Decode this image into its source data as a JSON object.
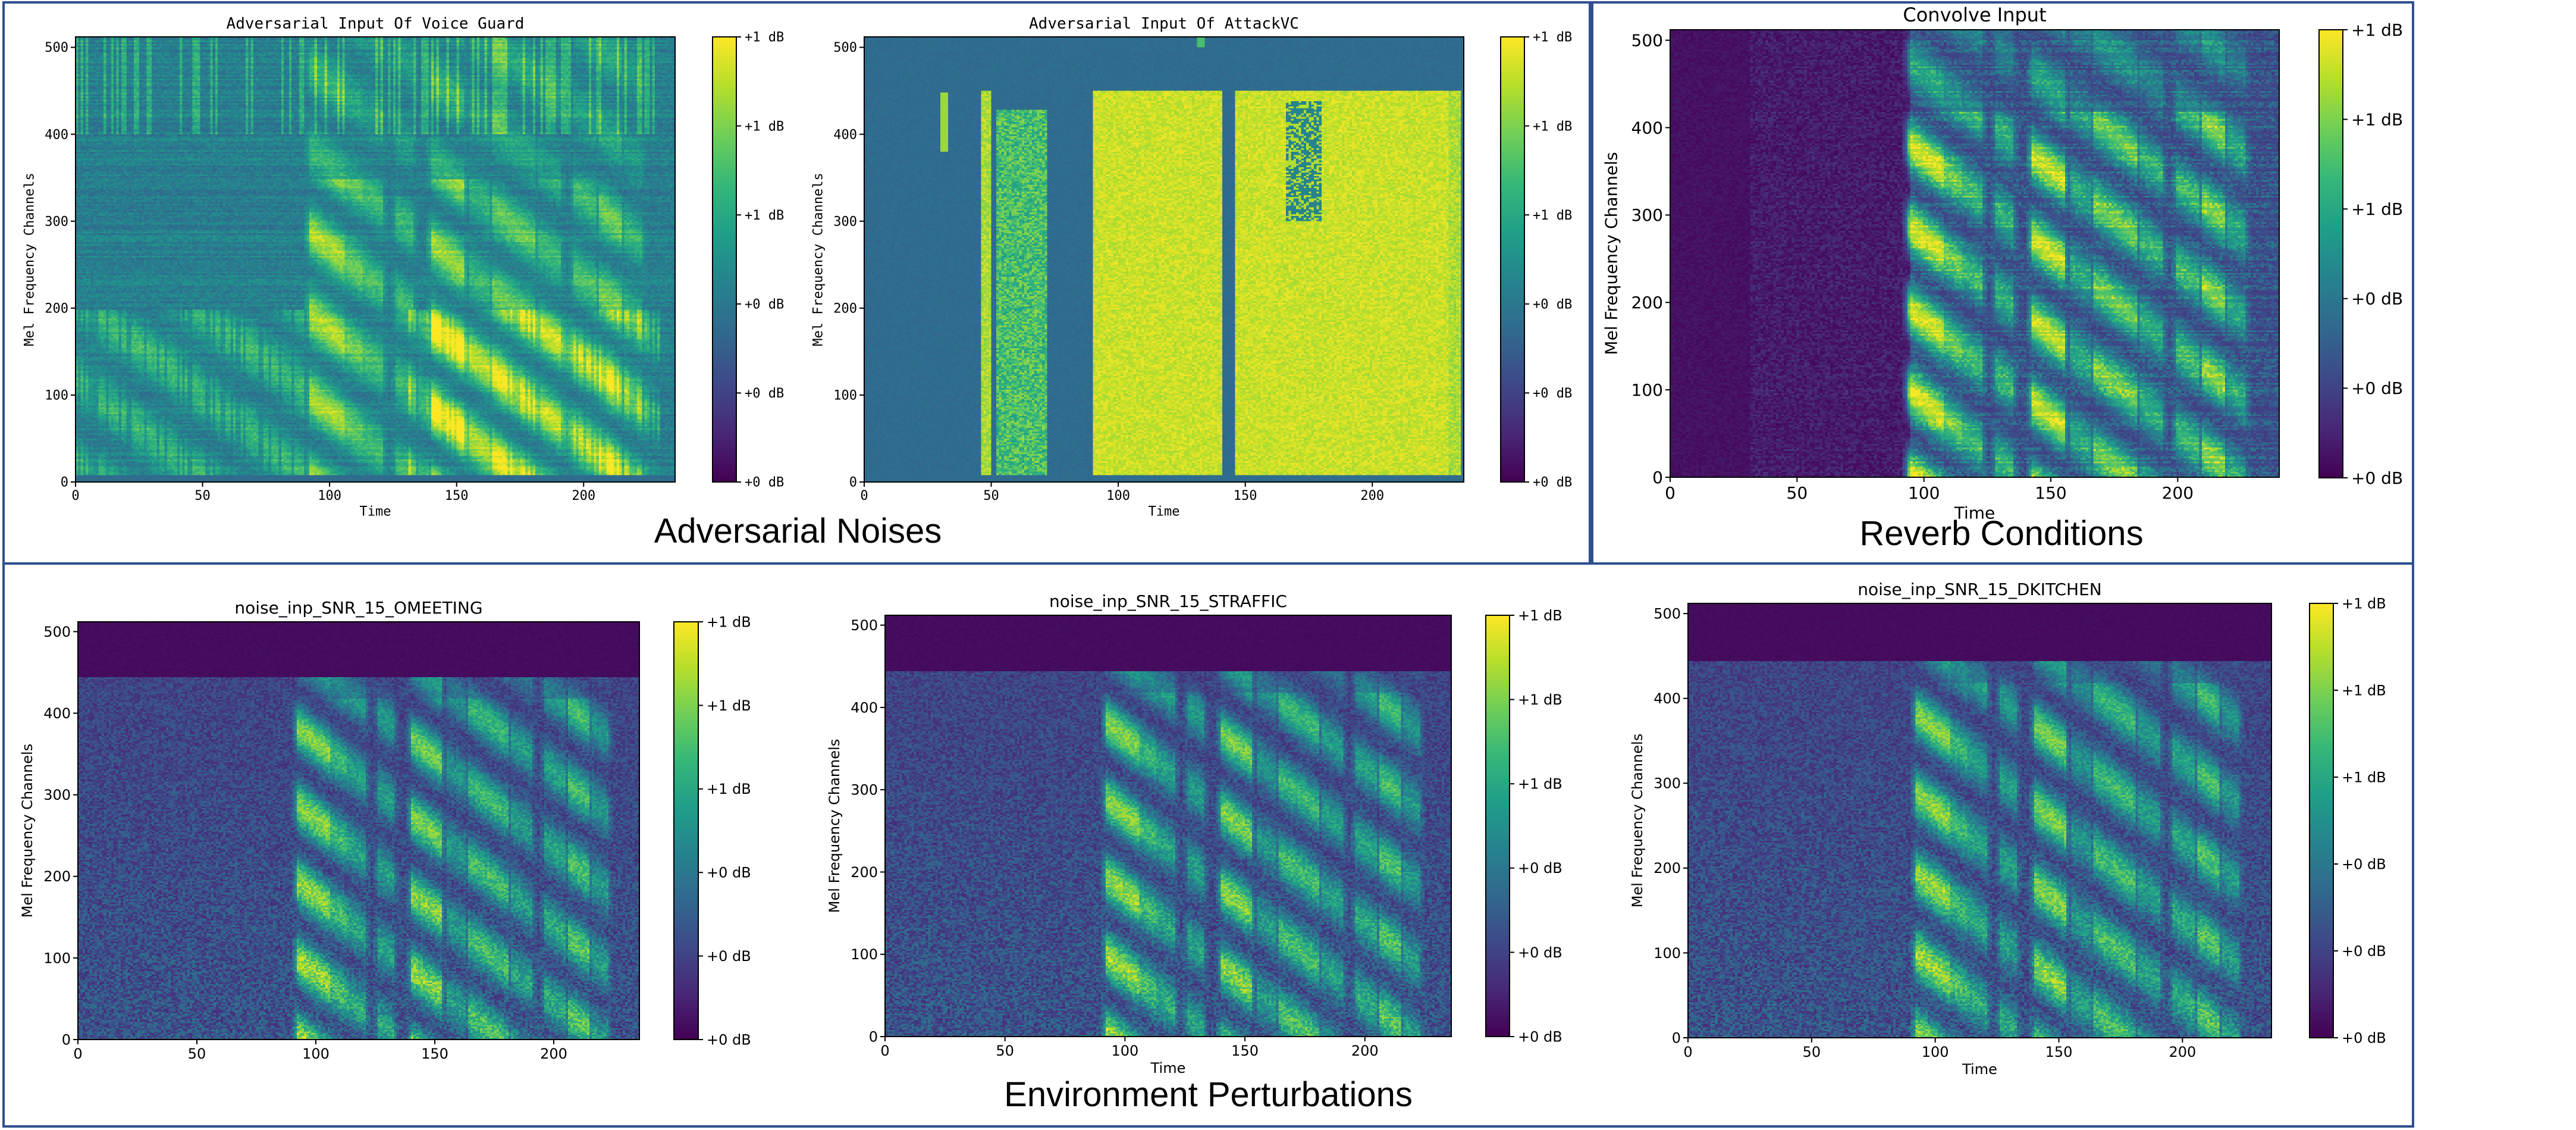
{
  "groups": {
    "adversarial": "Adversarial Noises",
    "reverb": "Reverb Conditions",
    "environment": "Environment Perturbations"
  },
  "colormap": [
    "#440154",
    "#482878",
    "#3e4989",
    "#31688e",
    "#26828e",
    "#1f9e89",
    "#35b779",
    "#6ece58",
    "#b5de2b",
    "#fde725"
  ],
  "chart_data": [
    {
      "id": "voice-guard",
      "type": "heatmap",
      "title": "Adversarial Input Of Voice Guard",
      "xlabel": "Time",
      "ylabel": "Mel Frequency Channels",
      "xlim": [
        0,
        236
      ],
      "ylim": [
        0,
        512
      ],
      "xticks": [
        0,
        50,
        100,
        150,
        200
      ],
      "yticks": [
        0,
        100,
        200,
        300,
        400,
        500
      ],
      "colorbar_ticks": [
        "+0 dB",
        "+0 dB",
        "+0 dB",
        "+1 dB",
        "+1 dB",
        "+1 dB"
      ],
      "profile": "voiceguard"
    },
    {
      "id": "attackvc",
      "type": "heatmap",
      "title": "Adversarial Input Of AttackVC",
      "xlabel": "Time",
      "ylabel": "Mel Frequency Channels",
      "xlim": [
        0,
        236
      ],
      "ylim": [
        0,
        512
      ],
      "xticks": [
        0,
        50,
        100,
        150,
        200
      ],
      "yticks": [
        0,
        100,
        200,
        300,
        400,
        500
      ],
      "colorbar_ticks": [
        "+0 dB",
        "+0 dB",
        "+0 dB",
        "+1 dB",
        "+1 dB",
        "+1 dB"
      ],
      "profile": "attackvc"
    },
    {
      "id": "convolve",
      "type": "heatmap",
      "title": "Convolve Input",
      "xlabel": "Time",
      "ylabel": "Mel Frequency Channels",
      "xlim": [
        0,
        240
      ],
      "ylim": [
        0,
        512
      ],
      "xticks": [
        0,
        50,
        100,
        150,
        200
      ],
      "yticks": [
        0,
        100,
        200,
        300,
        400,
        500
      ],
      "colorbar_ticks": [
        "+0 dB",
        "+0 dB",
        "+0 dB",
        "+1 dB",
        "+1 dB",
        "+1 dB"
      ],
      "profile": "reverb"
    },
    {
      "id": "omeeting",
      "type": "heatmap",
      "title": "noise_inp_SNR_15_OMEETING",
      "xlabel": "",
      "ylabel": "Mel Frequency Channels",
      "xlim": [
        0,
        236
      ],
      "ylim": [
        0,
        512
      ],
      "xticks": [
        0,
        50,
        100,
        150,
        200
      ],
      "yticks": [
        0,
        100,
        200,
        300,
        400,
        500
      ],
      "colorbar_ticks": [
        "+0 dB",
        "+0 dB",
        "+0 dB",
        "+1 dB",
        "+1 dB",
        "+1 dB"
      ],
      "profile": "noise"
    },
    {
      "id": "straffic",
      "type": "heatmap",
      "title": "noise_inp_SNR_15_STRAFFIC",
      "xlabel": "Time",
      "ylabel": "Mel Frequency Channels",
      "xlim": [
        0,
        236
      ],
      "ylim": [
        0,
        512
      ],
      "xticks": [
        0,
        50,
        100,
        150,
        200
      ],
      "yticks": [
        0,
        100,
        200,
        300,
        400,
        500
      ],
      "colorbar_ticks": [
        "+0 dB",
        "+0 dB",
        "+0 dB",
        "+1 dB",
        "+1 dB",
        "+1 dB"
      ],
      "profile": "noise"
    },
    {
      "id": "dkitchen",
      "type": "heatmap",
      "title": "noise_inp_SNR_15_DKITCHEN",
      "xlabel": "Time",
      "ylabel": "Mel Frequency Channels",
      "xlim": [
        0,
        236
      ],
      "ylim": [
        0,
        512
      ],
      "xticks": [
        0,
        50,
        100,
        150,
        200
      ],
      "yticks": [
        0,
        100,
        200,
        300,
        400,
        500
      ],
      "colorbar_ticks": [
        "+0 dB",
        "+0 dB",
        "+0 dB",
        "+1 dB",
        "+1 dB",
        "+1 dB"
      ],
      "profile": "noise"
    }
  ]
}
